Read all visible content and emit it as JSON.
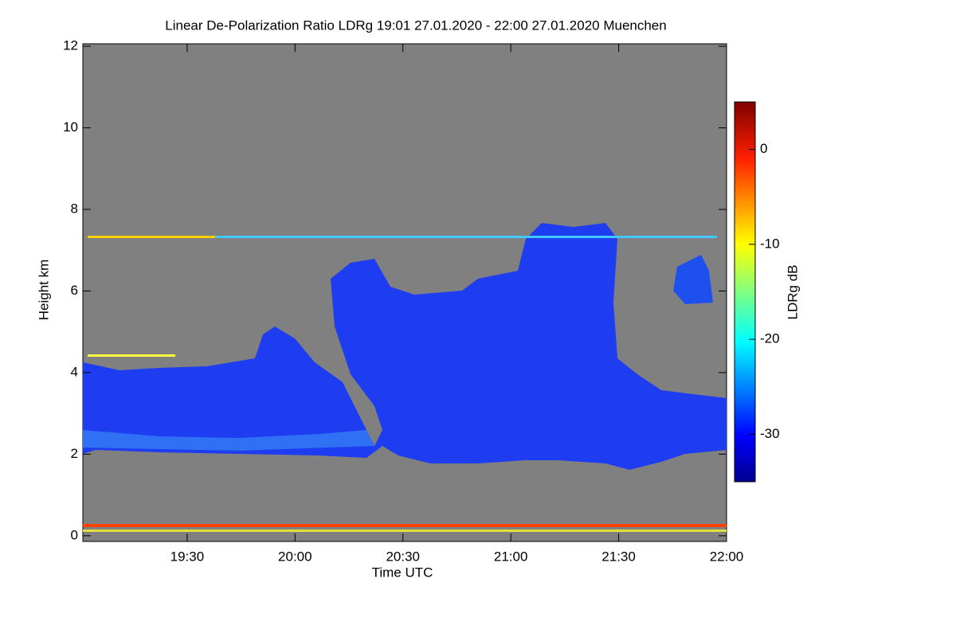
{
  "chart_data": {
    "type": "heatmap",
    "title": "Linear De-Polarization Ratio LDRg   19:01 27.01.2020 - 22:00 27.01.2020 Muenchen",
    "xlabel": "Time UTC",
    "ylabel": "Height km",
    "xlim": [
      1141,
      1320
    ],
    "xticks": [
      {
        "value": 1170,
        "label": "19:30"
      },
      {
        "value": 1200,
        "label": "20:00"
      },
      {
        "value": 1230,
        "label": "20:30"
      },
      {
        "value": 1260,
        "label": "21:00"
      },
      {
        "value": 1290,
        "label": "21:30"
      },
      {
        "value": 1320,
        "label": "22:00"
      }
    ],
    "ylim": [
      -0.14,
      12.06
    ],
    "yticks": [
      0,
      2,
      4,
      6,
      8,
      10,
      12
    ],
    "colorbar": {
      "label": "LDRg dB",
      "lim": [
        -35,
        5
      ],
      "ticks": [
        0,
        -10,
        -20,
        -30
      ]
    }
  }
}
